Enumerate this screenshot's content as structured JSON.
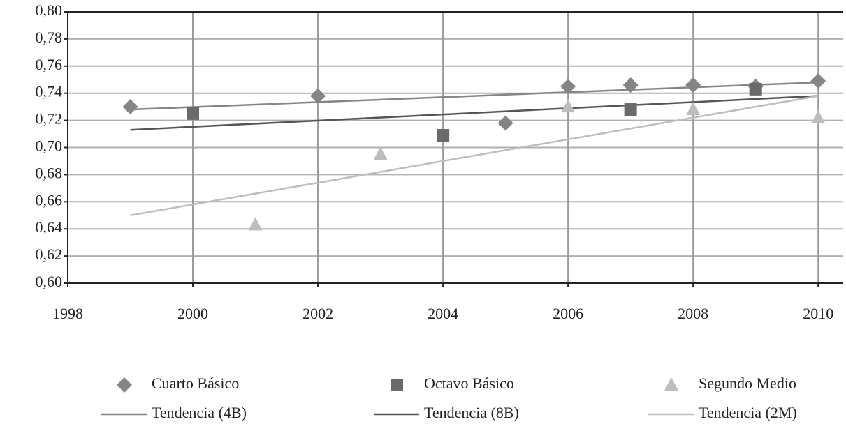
{
  "chart_data": {
    "type": "scatter",
    "xlim": [
      1998,
      2010.4
    ],
    "xticks": [
      1998,
      2000,
      2002,
      2004,
      2006,
      2008,
      2010
    ],
    "ylim": [
      0.6,
      0.8
    ],
    "yticks": [
      {
        "value": 0.6,
        "label": "0,60"
      },
      {
        "value": 0.62,
        "label": "0,62"
      },
      {
        "value": 0.64,
        "label": "0,64"
      },
      {
        "value": 0.66,
        "label": "0,66"
      },
      {
        "value": 0.68,
        "label": "0,68"
      },
      {
        "value": 0.7,
        "label": "0,70"
      },
      {
        "value": 0.72,
        "label": "0,72"
      },
      {
        "value": 0.74,
        "label": "0,74"
      },
      {
        "value": 0.76,
        "label": "0,76"
      },
      {
        "value": 0.78,
        "label": "0,78"
      },
      {
        "value": 0.8,
        "label": "0,80"
      }
    ],
    "grid": true,
    "series": [
      {
        "name": "Cuarto Básico",
        "type": "scatter",
        "marker": "diamond",
        "color": "#858585",
        "x": [
          1999,
          2002,
          2005,
          2006,
          2007,
          2008,
          2009,
          2010
        ],
        "values": [
          0.73,
          0.738,
          0.718,
          0.745,
          0.746,
          0.746,
          0.745,
          0.749
        ]
      },
      {
        "name": "Octavo Básico",
        "type": "scatter",
        "marker": "square",
        "color": "#6a6a6a",
        "x": [
          2000,
          2004,
          2007,
          2009
        ],
        "values": [
          0.725,
          0.709,
          0.728,
          0.743
        ]
      },
      {
        "name": "Segundo Medio",
        "type": "scatter",
        "marker": "triangle",
        "color": "#bdbdbd",
        "x": [
          2001,
          2003,
          2006,
          2008,
          2010
        ],
        "values": [
          0.643,
          0.695,
          0.73,
          0.728,
          0.722
        ]
      },
      {
        "name": "Tendencia (4B)",
        "type": "line",
        "color": "#858585",
        "x": [
          1999,
          2010
        ],
        "values": [
          0.728,
          0.748
        ]
      },
      {
        "name": "Tendencia (8B)",
        "type": "line",
        "color": "#555555",
        "x": [
          1999,
          2010
        ],
        "values": [
          0.713,
          0.738
        ]
      },
      {
        "name": "Tendencia (2M)",
        "type": "line",
        "color": "#bdbdbd",
        "x": [
          1999,
          2010
        ],
        "values": [
          0.65,
          0.738
        ]
      }
    ]
  }
}
